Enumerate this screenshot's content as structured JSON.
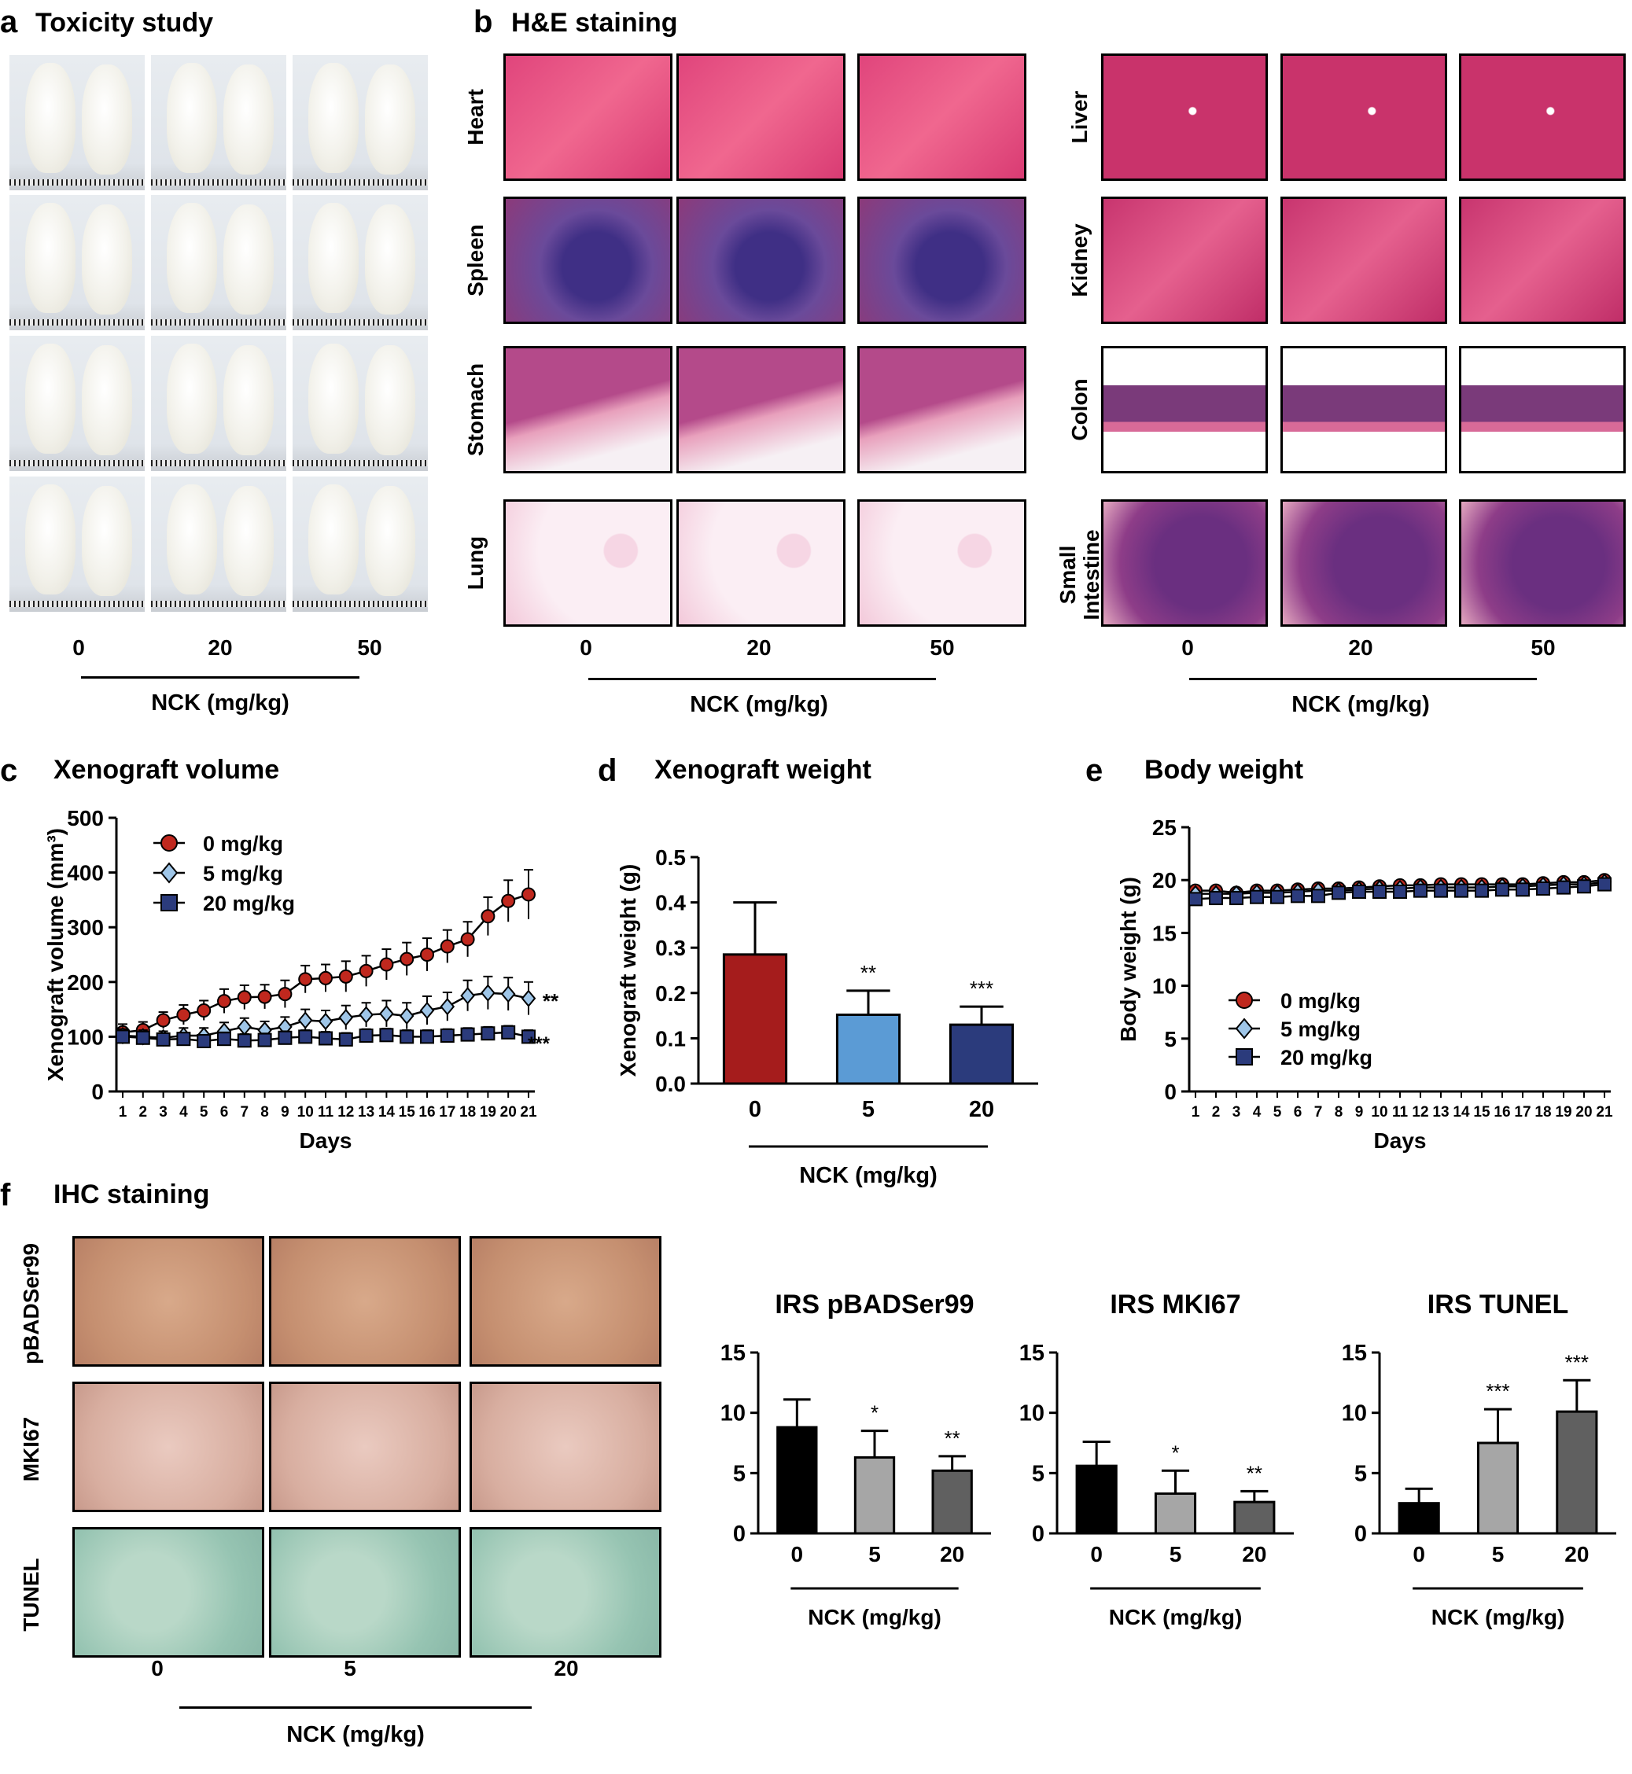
{
  "panels": {
    "a": {
      "letter": "a",
      "title": "Toxicity study",
      "ticks": [
        "0",
        "20",
        "50"
      ],
      "unit": "NCK (mg/kg)"
    },
    "b": {
      "letter": "b",
      "title": "H&E staining",
      "left_rows": [
        "Heart",
        "Spleen",
        "Stomach",
        "Lung"
      ],
      "right_rows": [
        "Liver",
        "Kidney",
        "Colon",
        "Small\nIntestine"
      ],
      "ticks": [
        "0",
        "20",
        "50"
      ],
      "unit": "NCK (mg/kg)"
    },
    "c": {
      "letter": "c",
      "title": "Xenograft volume"
    },
    "d": {
      "letter": "d",
      "title": "Xenograft weight"
    },
    "e": {
      "letter": "e",
      "title": "Body weight"
    },
    "f": {
      "letter": "f",
      "title": "IHC staining",
      "rows": [
        "pBADSer99",
        "MKI67",
        "TUNEL"
      ],
      "ticks": [
        "0",
        "5",
        "20"
      ],
      "unit": "NCK (mg/kg)"
    }
  },
  "colors": {
    "red": "#a51c1c",
    "red_marker": "#c0281e",
    "blue_light": "#9fc6e8",
    "navy": "#2b3b7c",
    "light_blue_bar": "#5b9bd5",
    "black": "#000000",
    "gray_light": "#a6a6a6",
    "gray_dark": "#606060",
    "he_pink": "#d9457a",
    "spleen_purple": "#5b3d8f",
    "ihc_brown": "#c99a7c",
    "tunel_green": "#9ec8b8"
  },
  "chart_data": [
    {
      "type": "line",
      "id": "c",
      "title": "Xenograft volume",
      "xlabel": "Days",
      "ylabel": "Xenograft volume (mm³)",
      "ylim": [
        0,
        500
      ],
      "yticks": [
        0,
        100,
        200,
        300,
        400,
        500
      ],
      "x": [
        1,
        2,
        3,
        4,
        5,
        6,
        7,
        8,
        9,
        10,
        11,
        12,
        13,
        14,
        15,
        16,
        17,
        18,
        19,
        20,
        21
      ],
      "legend_position": "top-left",
      "series": [
        {
          "name": "0 mg/kg",
          "marker": "circle",
          "color": "#c0281e",
          "values": [
            108,
            112,
            130,
            140,
            148,
            165,
            172,
            173,
            178,
            205,
            207,
            210,
            220,
            232,
            242,
            250,
            265,
            278,
            320,
            348,
            360
          ],
          "errors": [
            15,
            15,
            15,
            18,
            18,
            22,
            22,
            22,
            25,
            25,
            25,
            28,
            28,
            28,
            30,
            30,
            30,
            32,
            35,
            38,
            45
          ]
        },
        {
          "name": "5 mg/kg",
          "marker": "diamond",
          "color": "#9fc6e8",
          "values": [
            102,
            100,
            98,
            102,
            102,
            110,
            118,
            112,
            118,
            130,
            128,
            135,
            140,
            142,
            138,
            148,
            155,
            175,
            180,
            178,
            170
          ],
          "errors": [
            12,
            12,
            12,
            14,
            14,
            16,
            16,
            16,
            18,
            20,
            20,
            22,
            22,
            24,
            24,
            26,
            26,
            28,
            30,
            30,
            30
          ]
        },
        {
          "name": "20 mg/kg",
          "marker": "square",
          "color": "#2b3b7c",
          "values": [
            100,
            98,
            95,
            96,
            92,
            96,
            93,
            94,
            98,
            100,
            97,
            95,
            102,
            103,
            100,
            100,
            102,
            104,
            106,
            108,
            100
          ],
          "errors": [
            10,
            10,
            10,
            10,
            10,
            12,
            12,
            12,
            12,
            12,
            12,
            12,
            12,
            12,
            12,
            12,
            12,
            12,
            12,
            12,
            12
          ]
        }
      ],
      "annotations": [
        "**",
        "***"
      ]
    },
    {
      "type": "bar",
      "id": "d",
      "title": "Xenograft weight",
      "ylabel": "Xenograft weight (g)",
      "xlabel": "NCK (mg/kg)",
      "categories": [
        "0",
        "5",
        "20"
      ],
      "values": [
        0.285,
        0.152,
        0.13
      ],
      "errors": [
        0.115,
        0.053,
        0.04
      ],
      "significance": [
        "",
        "**",
        "***"
      ],
      "colors": [
        "#a51c1c",
        "#5b9bd5",
        "#2b3b7c"
      ],
      "ylim": [
        0,
        0.5
      ],
      "yticks": [
        "0.0",
        "0.1",
        "0.2",
        "0.3",
        "0.4",
        "0.5"
      ]
    },
    {
      "type": "line",
      "id": "e",
      "title": "Body weight",
      "xlabel": "Days",
      "ylabel": "Body weight (g)",
      "ylim": [
        0,
        25
      ],
      "yticks": [
        0,
        5,
        10,
        15,
        20,
        25
      ],
      "x": [
        1,
        2,
        3,
        4,
        5,
        6,
        7,
        8,
        9,
        10,
        11,
        12,
        13,
        14,
        15,
        16,
        17,
        18,
        19,
        20,
        21
      ],
      "legend_position": "bottom-left",
      "series": [
        {
          "name": "0 mg/kg",
          "marker": "circle",
          "color": "#c0281e",
          "values": [
            19.0,
            19.0,
            18.8,
            19.0,
            19.0,
            19.1,
            19.2,
            19.2,
            19.3,
            19.4,
            19.5,
            19.5,
            19.6,
            19.6,
            19.6,
            19.6,
            19.6,
            19.7,
            19.8,
            19.8,
            20.0
          ]
        },
        {
          "name": "5 mg/kg",
          "marker": "diamond",
          "color": "#9fc6e8",
          "values": [
            18.7,
            18.7,
            18.7,
            18.8,
            18.8,
            18.9,
            19.0,
            19.0,
            19.1,
            19.2,
            19.2,
            19.3,
            19.3,
            19.3,
            19.3,
            19.4,
            19.4,
            19.5,
            19.6,
            19.6,
            19.8
          ]
        },
        {
          "name": "20 mg/kg",
          "marker": "square",
          "color": "#2b3b7c",
          "values": [
            18.2,
            18.3,
            18.3,
            18.4,
            18.4,
            18.5,
            18.5,
            18.8,
            18.9,
            18.9,
            18.9,
            19.0,
            19.0,
            19.0,
            19.0,
            19.1,
            19.1,
            19.2,
            19.3,
            19.4,
            19.6
          ]
        }
      ]
    },
    {
      "type": "bar",
      "id": "f1",
      "title": "IRS pBADSer99",
      "xlabel": "NCK (mg/kg)",
      "categories": [
        "0",
        "5",
        "20"
      ],
      "values": [
        8.8,
        6.3,
        5.2
      ],
      "errors": [
        2.3,
        2.2,
        1.2
      ],
      "significance": [
        "",
        "*",
        "**"
      ],
      "colors": [
        "#000000",
        "#a6a6a6",
        "#606060"
      ],
      "ylim": [
        0,
        15
      ],
      "yticks": [
        0,
        5,
        10,
        15
      ]
    },
    {
      "type": "bar",
      "id": "f2",
      "title": "IRS MKI67",
      "xlabel": "NCK (mg/kg)",
      "categories": [
        "0",
        "5",
        "20"
      ],
      "values": [
        5.6,
        3.3,
        2.6
      ],
      "errors": [
        2.0,
        1.9,
        0.9
      ],
      "significance": [
        "",
        "*",
        "**"
      ],
      "colors": [
        "#000000",
        "#a6a6a6",
        "#606060"
      ],
      "ylim": [
        0,
        15
      ],
      "yticks": [
        0,
        5,
        10,
        15
      ]
    },
    {
      "type": "bar",
      "id": "f3",
      "title": "IRS TUNEL",
      "xlabel": "NCK (mg/kg)",
      "categories": [
        "0",
        "5",
        "20"
      ],
      "values": [
        2.5,
        7.5,
        10.1
      ],
      "errors": [
        1.2,
        2.8,
        2.6
      ],
      "significance": [
        "",
        "***",
        "***"
      ],
      "colors": [
        "#000000",
        "#a6a6a6",
        "#606060"
      ],
      "ylim": [
        0,
        15
      ],
      "yticks": [
        0,
        5,
        10,
        15
      ]
    }
  ]
}
